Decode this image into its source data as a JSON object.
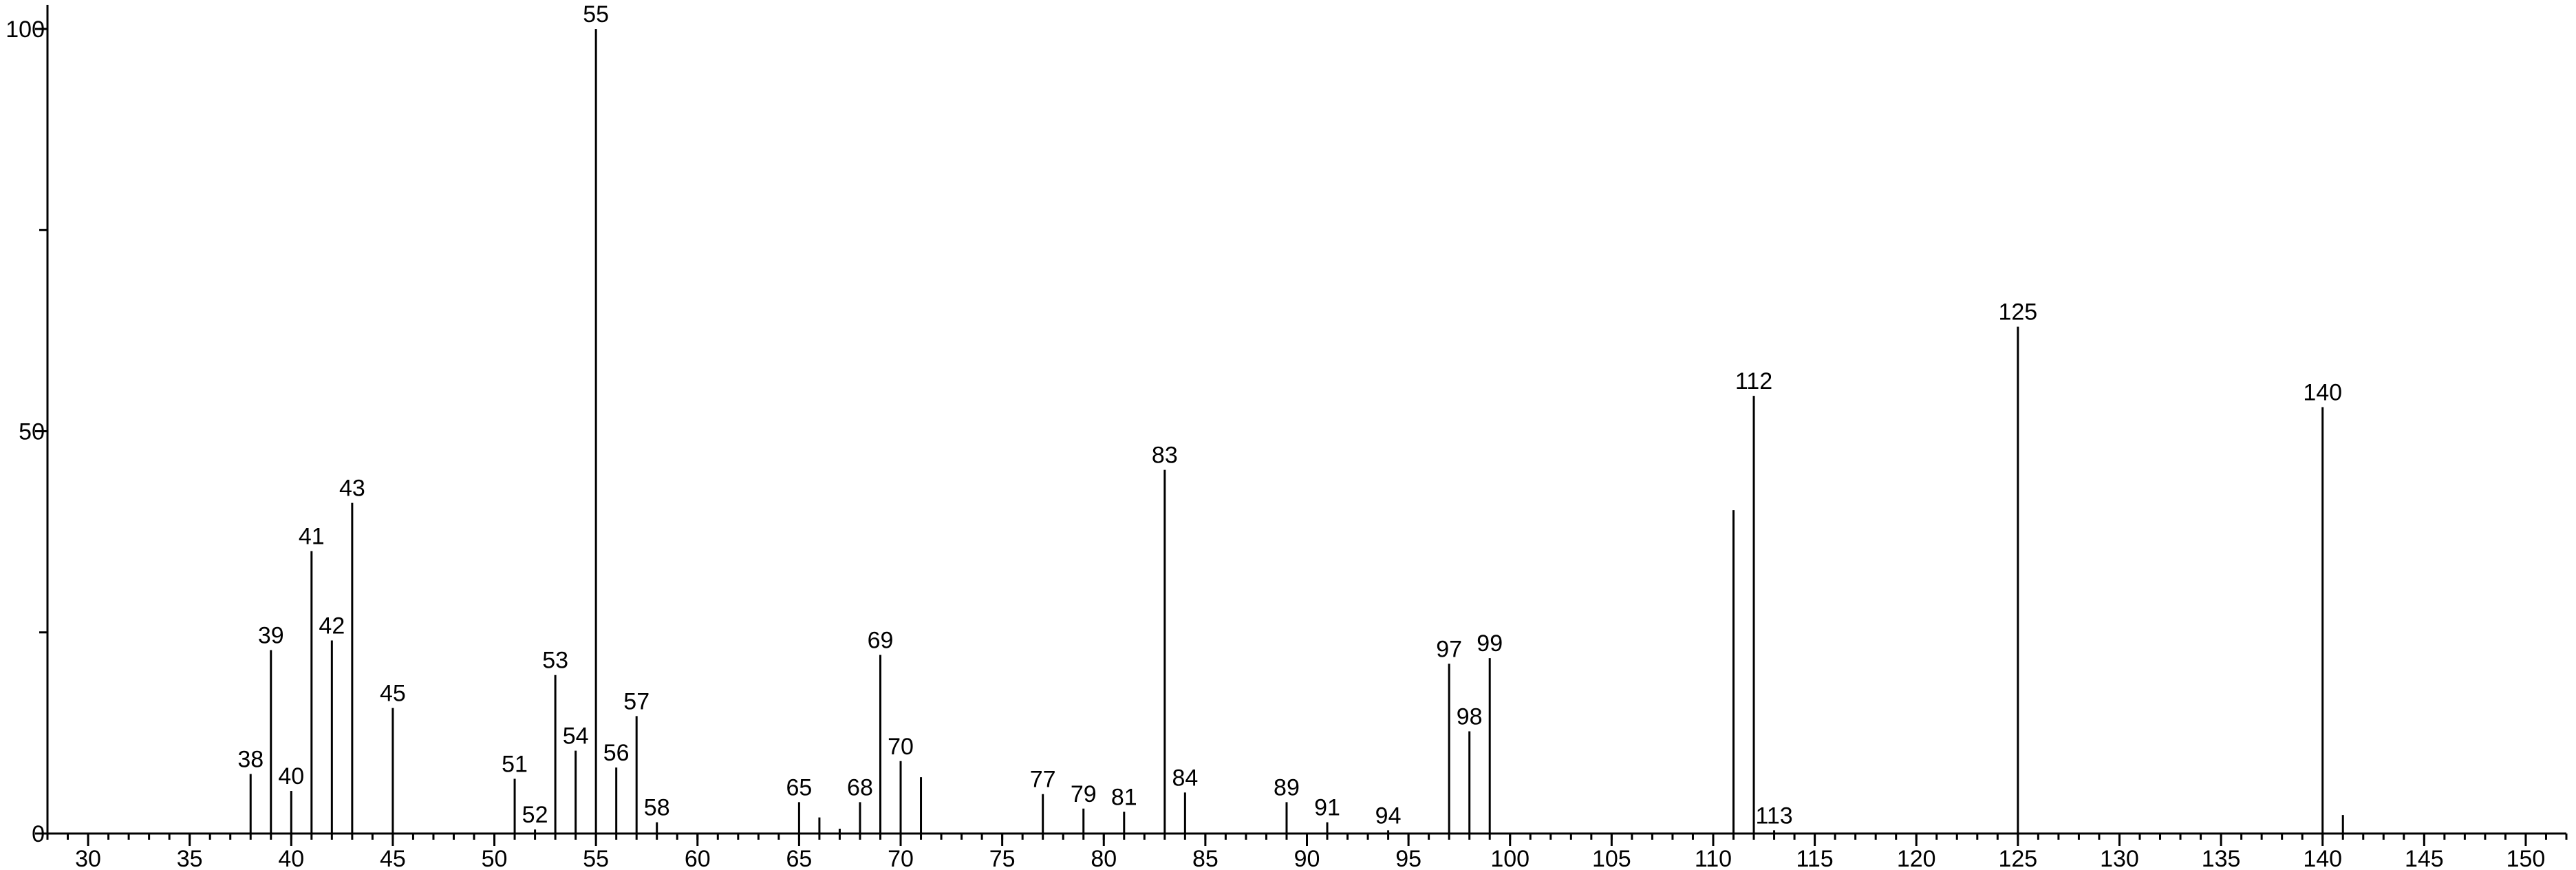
{
  "chart_data": {
    "type": "stem",
    "x": [
      38,
      39,
      40,
      41,
      42,
      43,
      45,
      51,
      52,
      53,
      54,
      55,
      56,
      57,
      58,
      65,
      66,
      67,
      68,
      69,
      70,
      71,
      77,
      79,
      81,
      83,
      84,
      89,
      91,
      94,
      97,
      98,
      99,
      111,
      112,
      113,
      125,
      140,
      141
    ],
    "values": [
      7.4,
      22.8,
      5.3,
      35.1,
      24.0,
      41.1,
      15.6,
      6.8,
      0.5,
      19.7,
      10.3,
      100,
      8.2,
      14.6,
      1.4,
      3.9,
      2.0,
      0.6,
      3.9,
      22.2,
      9.0,
      7.0,
      4.9,
      3.1,
      2.7,
      45.2,
      5.1,
      3.9,
      1.4,
      0.4,
      21.1,
      12.7,
      21.8,
      40.2,
      54.4,
      0.4,
      63.0,
      53.0,
      2.3
    ],
    "x_labels": [
      38,
      39,
      40,
      41,
      42,
      43,
      45,
      51,
      52,
      53,
      54,
      55,
      56,
      57,
      58,
      65,
      null,
      null,
      68,
      69,
      70,
      null,
      77,
      79,
      81,
      83,
      84,
      89,
      91,
      94,
      97,
      98,
      99,
      null,
      112,
      113,
      125,
      140,
      null
    ],
    "color": "#000000",
    "xlim": [
      28,
      152
    ],
    "xticks": [
      30,
      35,
      40,
      45,
      50,
      55,
      60,
      65,
      70,
      75,
      80,
      85,
      90,
      95,
      100,
      105,
      110,
      115,
      120,
      125,
      130,
      135,
      140,
      145,
      150
    ],
    "xminor": 1,
    "ylim": [
      0,
      103
    ],
    "yticks": [
      0,
      50,
      100
    ],
    "yminor": 25
  }
}
